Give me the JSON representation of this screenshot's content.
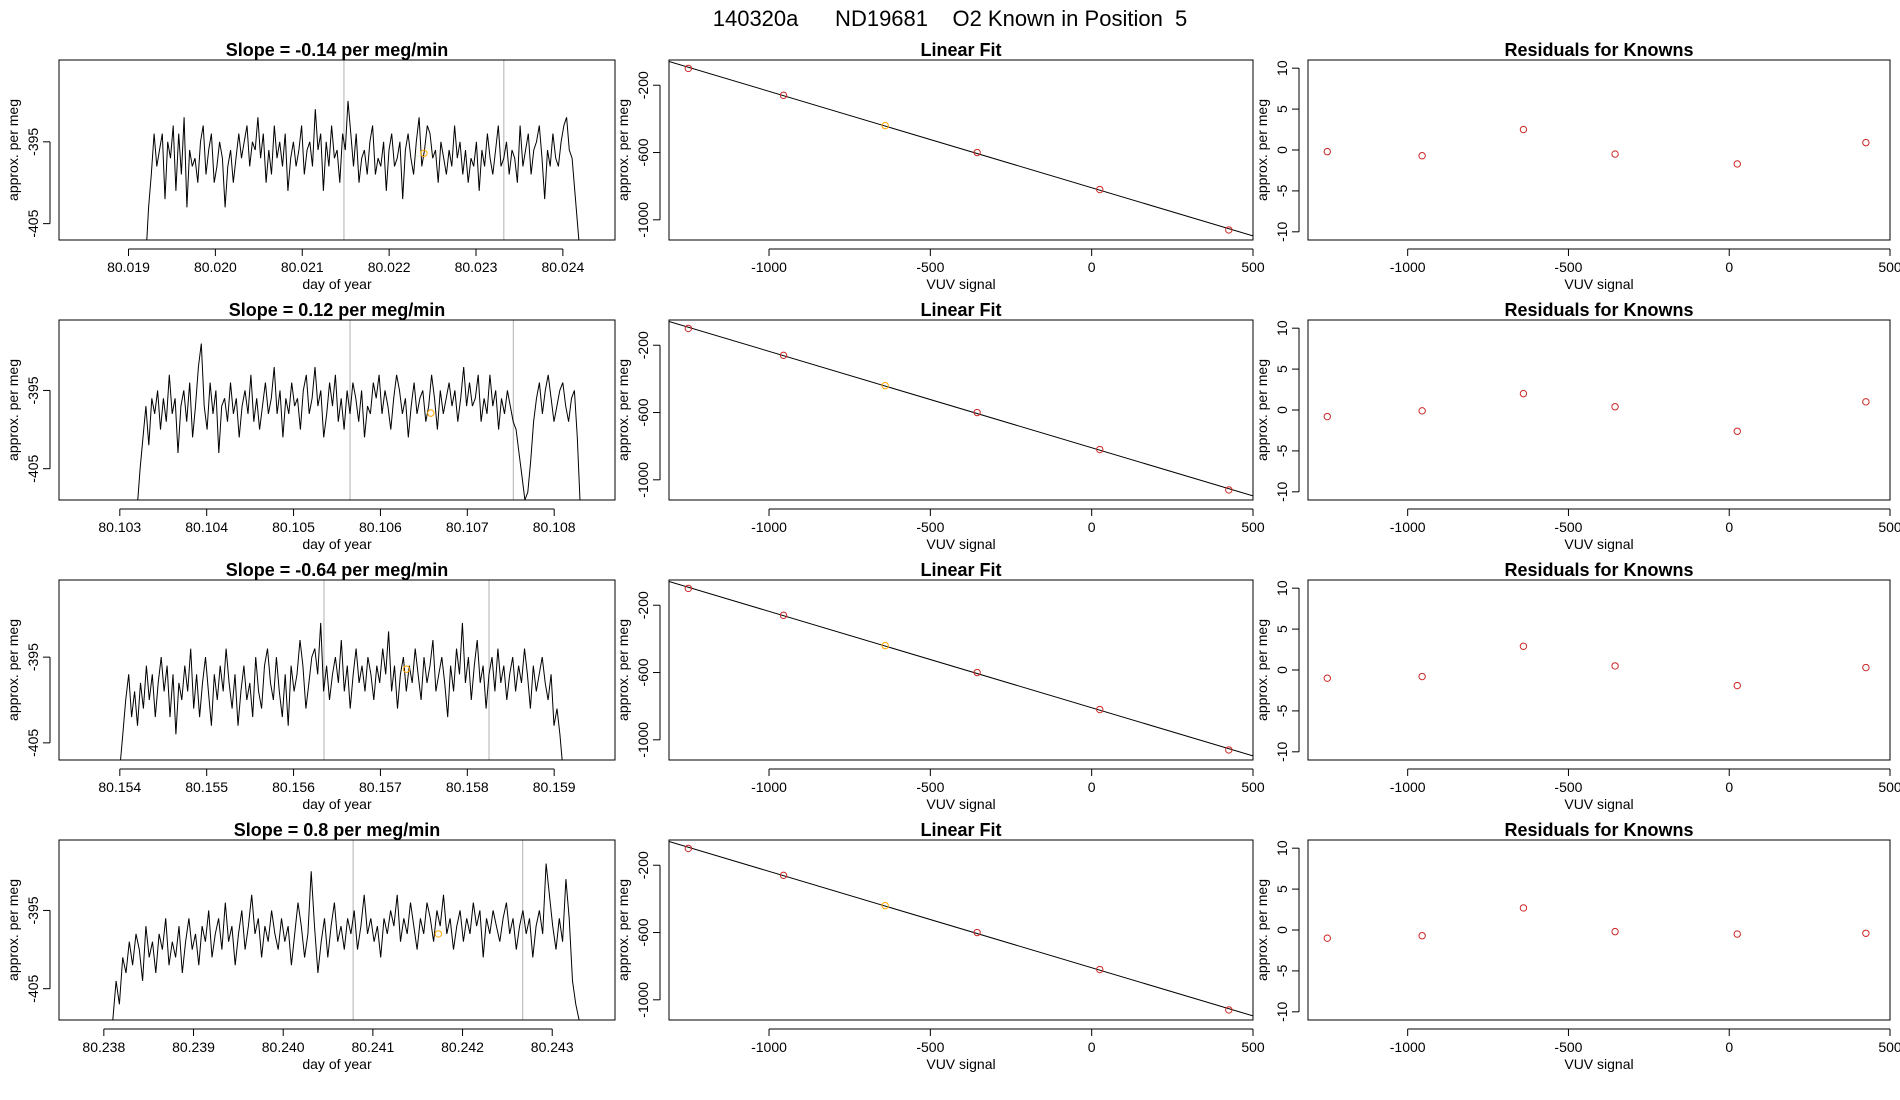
{
  "title": "140320a      ND19681    O2 Known in Position  5",
  "colors": {
    "trace": "#000000",
    "highlight": "#ffa500",
    "vline": "#bebebe",
    "residual": "#cd2626",
    "fitline": "#000000"
  },
  "chart_data": [
    {
      "type": "line",
      "title": "Slope =  -0.14  per meg/min",
      "xlabel": "day of year",
      "ylabel": "approx. per meg",
      "xlim": [
        80.0182,
        80.0246
      ],
      "ylim": [
        -407,
        -385
      ],
      "xticks": [
        80.019,
        80.02,
        80.021,
        80.022,
        80.023,
        80.024
      ],
      "xtick_labels": [
        "80.019",
        "80.020",
        "80.021",
        "80.022",
        "80.023",
        "80.024"
      ],
      "yticks": [
        -395,
        -405
      ],
      "ytick_labels": [
        "-395",
        "-405"
      ],
      "x_start": 80.0192,
      "x_end": 80.0242,
      "values": [
        -409,
        -403,
        -399,
        -394,
        -398,
        -396,
        -394,
        -402,
        -395,
        -397,
        -393,
        -401,
        -394,
        -399,
        -392,
        -403,
        -396,
        -398,
        -397,
        -400,
        -395,
        -393,
        -399,
        -396,
        -394,
        -400,
        -398,
        -395,
        -397,
        -403,
        -398,
        -396,
        -400,
        -397,
        -394,
        -397,
        -395,
        -393,
        -398,
        -395,
        -396,
        -392,
        -397,
        -394,
        -400,
        -396,
        -399,
        -393,
        -397,
        -395,
        -398,
        -394,
        -401,
        -397,
        -395,
        -398,
        -396,
        -393,
        -399,
        -396,
        -395,
        -398,
        -391,
        -396,
        -394,
        -401,
        -395,
        -398,
        -393,
        -397,
        -396,
        -400,
        -394,
        -396,
        -390,
        -394,
        -398,
        -394,
        -400,
        -397,
        -396,
        -399,
        -395,
        -393,
        -399,
        -397,
        -398,
        -395,
        -401,
        -396,
        -394,
        -398,
        -397,
        -395,
        -402,
        -396,
        -394,
        -397,
        -399,
        -395,
        -392,
        -398,
        -396,
        -393,
        -394,
        -397,
        -396,
        -400,
        -395,
        -397,
        -399,
        -396,
        -398,
        -393,
        -397,
        -395,
        -399,
        -396,
        -400,
        -397,
        -398,
        -395,
        -401,
        -396,
        -398,
        -394,
        -397,
        -399,
        -396,
        -393,
        -398,
        -397,
        -395,
        -399,
        -396,
        -397,
        -400,
        -393,
        -398,
        -396,
        -394,
        -399,
        -396,
        -395,
        -393,
        -397,
        -402,
        -396,
        -398,
        -394,
        -397,
        -398,
        -395,
        -393,
        -392,
        -396,
        -397,
        -401,
        -405,
        -409
      ],
      "vlines": [
        80.02148,
        80.02332
      ],
      "highlight_point": {
        "x": 80.0224,
        "y": -396.4
      }
    },
    {
      "type": "scatter",
      "title": "Linear Fit",
      "xlabel": "VUV signal",
      "ylabel": "approx. per meg",
      "xlim": [
        -1310,
        500
      ],
      "ylim": [
        -1120,
        -50
      ],
      "xticks": [
        -1000,
        -500,
        0,
        500
      ],
      "xtick_labels": [
        "-1000",
        "-500",
        "0",
        "500"
      ],
      "yticks": [
        -200,
        -600,
        -1000
      ],
      "ytick_labels": [
        "-200",
        "-600",
        "-1000"
      ],
      "x": [
        -1250,
        -955,
        -640,
        -355,
        25,
        425
      ],
      "y": [
        -100,
        -260,
        -440,
        -600,
        -820,
        -1060
      ],
      "highlight_index": 2,
      "fit_line": true
    },
    {
      "type": "scatter",
      "title": "Residuals for Knowns",
      "xlabel": "VUV signal",
      "ylabel": "approx. per meg",
      "xlim": [
        -1310,
        500
      ],
      "ylim": [
        -11,
        11
      ],
      "xticks": [
        -1000,
        -500,
        0,
        500
      ],
      "xtick_labels": [
        "-1000",
        "-500",
        "0",
        "500"
      ],
      "yticks": [
        10,
        5,
        0,
        -5,
        -10
      ],
      "ytick_labels": [
        "10",
        "5",
        "0",
        "-5",
        "-10"
      ],
      "x": [
        -1250,
        -955,
        -640,
        -355,
        25,
        425
      ],
      "y": [
        -0.2,
        -0.7,
        2.5,
        -0.5,
        -1.7,
        0.9
      ]
    },
    {
      "type": "line",
      "title": "Slope =  0.12  per meg/min",
      "xlabel": "day of year",
      "ylabel": "approx. per meg",
      "xlim": [
        80.1023,
        80.1087
      ],
      "ylim": [
        -409,
        -386
      ],
      "xticks": [
        80.103,
        80.104,
        80.105,
        80.106,
        80.107,
        80.108
      ],
      "xtick_labels": [
        "80.103",
        "80.104",
        "80.105",
        "80.106",
        "80.107",
        "80.108"
      ],
      "yticks": [
        -395,
        -405
      ],
      "ytick_labels": [
        "-395",
        "-405"
      ],
      "x_start": 80.1032,
      "x_end": 80.1083,
      "values": [
        -410,
        -405,
        -401,
        -397,
        -402,
        -396,
        -398,
        -395,
        -400,
        -396,
        -399,
        -393,
        -398,
        -396,
        -403,
        -397,
        -395,
        -399,
        -394,
        -401,
        -397,
        -392,
        -389,
        -397,
        -400,
        -394,
        -398,
        -395,
        -403,
        -397,
        -396,
        -399,
        -394,
        -398,
        -396,
        -401,
        -397,
        -395,
        -398,
        -393,
        -399,
        -396,
        -400,
        -397,
        -394,
        -398,
        -396,
        -392,
        -398,
        -395,
        -401,
        -396,
        -398,
        -394,
        -397,
        -396,
        -400,
        -395,
        -393,
        -398,
        -396,
        -392,
        -397,
        -395,
        -401,
        -398,
        -394,
        -397,
        -393,
        -399,
        -396,
        -400,
        -395,
        -398,
        -394,
        -396,
        -399,
        -395,
        -401,
        -397,
        -398,
        -394,
        -396,
        -393,
        -398,
        -395,
        -397,
        -400,
        -396,
        -393,
        -395,
        -398,
        -396,
        -401,
        -397,
        -394,
        -398,
        -396,
        -395,
        -399,
        -397,
        -393,
        -396,
        -400,
        -395,
        -398,
        -396,
        -394,
        -397,
        -395,
        -399,
        -396,
        -392,
        -397,
        -394,
        -397,
        -396,
        -393,
        -399,
        -396,
        -398,
        -393,
        -397,
        -395,
        -400,
        -396,
        -398,
        -395,
        -397,
        -399,
        -400,
        -403,
        -406,
        -409,
        -408,
        -404,
        -399,
        -396,
        -394,
        -398,
        -395,
        -393,
        -396,
        -399,
        -397,
        -395,
        -394,
        -397,
        -399,
        -396,
        -395,
        -401,
        -410
      ],
      "vlines": [
        80.10565,
        80.10753
      ],
      "highlight_point": {
        "x": 80.10658,
        "y": -397.9
      }
    },
    {
      "type": "scatter",
      "title": "Linear Fit",
      "xlabel": "VUV signal",
      "ylabel": "approx. per meg",
      "xlim": [
        -1310,
        500
      ],
      "ylim": [
        -1120,
        -50
      ],
      "xticks": [
        -1000,
        -500,
        0,
        500
      ],
      "xtick_labels": [
        "-1000",
        "-500",
        "0",
        "500"
      ],
      "yticks": [
        -200,
        -600,
        -1000
      ],
      "ytick_labels": [
        "-200",
        "-600",
        "-1000"
      ],
      "x": [
        -1250,
        -955,
        -640,
        -355,
        25,
        425
      ],
      "y": [
        -100,
        -260,
        -440,
        -600,
        -820,
        -1060
      ],
      "highlight_index": 2,
      "fit_line": true
    },
    {
      "type": "scatter",
      "title": "Residuals for Knowns",
      "xlabel": "VUV signal",
      "ylabel": "approx. per meg",
      "xlim": [
        -1310,
        500
      ],
      "ylim": [
        -11,
        11
      ],
      "xticks": [
        -1000,
        -500,
        0,
        500
      ],
      "xtick_labels": [
        "-1000",
        "-500",
        "0",
        "500"
      ],
      "yticks": [
        10,
        5,
        0,
        -5,
        -10
      ],
      "ytick_labels": [
        "10",
        "5",
        "0",
        "-5",
        "-10"
      ],
      "x": [
        -1250,
        -955,
        -640,
        -355,
        25,
        425
      ],
      "y": [
        -0.8,
        -0.1,
        2.0,
        0.4,
        -2.6,
        1.0
      ]
    },
    {
      "type": "line",
      "title": "Slope =  -0.64  per meg/min",
      "xlabel": "day of year",
      "ylabel": "approx. per meg",
      "xlim": [
        80.1533,
        80.1597
      ],
      "ylim": [
        -407,
        -386
      ],
      "xticks": [
        80.154,
        80.155,
        80.156,
        80.157,
        80.158,
        80.159
      ],
      "xtick_labels": [
        "80.154",
        "80.155",
        "80.156",
        "80.157",
        "80.158",
        "80.159"
      ],
      "yticks": [
        -395,
        -405
      ],
      "ytick_labels": [
        "-395",
        "-405"
      ],
      "x_start": 80.154,
      "x_end": 80.1591,
      "values": [
        -408,
        -404,
        -400,
        -397,
        -402,
        -399,
        -403,
        -398,
        -401,
        -396,
        -400,
        -397,
        -402,
        -398,
        -395,
        -399,
        -396,
        -402,
        -397,
        -404,
        -398,
        -400,
        -396,
        -399,
        -394,
        -401,
        -397,
        -402,
        -398,
        -395,
        -399,
        -403,
        -397,
        -400,
        -396,
        -399,
        -394,
        -398,
        -401,
        -397,
        -403,
        -399,
        -396,
        -400,
        -398,
        -402,
        -395,
        -399,
        -401,
        -396,
        -394,
        -398,
        -400,
        -395,
        -399,
        -402,
        -397,
        -403,
        -396,
        -399,
        -397,
        -393,
        -396,
        -401,
        -398,
        -395,
        -394,
        -397,
        -391,
        -399,
        -396,
        -400,
        -397,
        -395,
        -398,
        -393,
        -399,
        -396,
        -401,
        -397,
        -394,
        -398,
        -396,
        -399,
        -395,
        -397,
        -400,
        -396,
        -398,
        -394,
        -397,
        -392,
        -399,
        -396,
        -401,
        -397,
        -395,
        -399,
        -396,
        -398,
        -394,
        -397,
        -400,
        -395,
        -398,
        -396,
        -393,
        -399,
        -397,
        -395,
        -398,
        -402,
        -396,
        -399,
        -394,
        -397,
        -391,
        -398,
        -395,
        -400,
        -396,
        -393,
        -398,
        -396,
        -401,
        -397,
        -395,
        -399,
        -394,
        -398,
        -396,
        -400,
        -397,
        -395,
        -399,
        -396,
        -398,
        -394,
        -397,
        -401,
        -396,
        -399,
        -397,
        -395,
        -398,
        -400,
        -397,
        -403,
        -401,
        -404,
        -408
      ],
      "vlines": [
        80.15635,
        80.15825
      ],
      "highlight_point": {
        "x": 80.1573,
        "y": -396.4
      }
    },
    {
      "type": "scatter",
      "title": "Linear Fit",
      "xlabel": "VUV signal",
      "ylabel": "approx. per meg",
      "xlim": [
        -1310,
        500
      ],
      "ylim": [
        -1120,
        -50
      ],
      "xticks": [
        -1000,
        -500,
        0,
        500
      ],
      "xtick_labels": [
        "-1000",
        "-500",
        "0",
        "500"
      ],
      "yticks": [
        -200,
        -600,
        -1000
      ],
      "ytick_labels": [
        "-200",
        "-600",
        "-1000"
      ],
      "x": [
        -1250,
        -955,
        -640,
        -355,
        25,
        425
      ],
      "y": [
        -100,
        -260,
        -440,
        -600,
        -820,
        -1060
      ],
      "highlight_index": 2,
      "fit_line": true
    },
    {
      "type": "scatter",
      "title": "Residuals for Knowns",
      "xlabel": "VUV signal",
      "ylabel": "approx. per meg",
      "xlim": [
        -1310,
        500
      ],
      "ylim": [
        -11,
        11
      ],
      "xticks": [
        -1000,
        -500,
        0,
        500
      ],
      "xtick_labels": [
        "-1000",
        "-500",
        "0",
        "500"
      ],
      "yticks": [
        10,
        5,
        0,
        -5,
        -10
      ],
      "ytick_labels": [
        "10",
        "5",
        "0",
        "-5",
        "-10"
      ],
      "x": [
        -1250,
        -955,
        -640,
        -355,
        25,
        425
      ],
      "y": [
        -1.0,
        -0.8,
        2.9,
        0.5,
        -1.9,
        0.3
      ]
    },
    {
      "type": "line",
      "title": "Slope =  0.8  per meg/min",
      "xlabel": "day of year",
      "ylabel": "approx. per meg",
      "xlim": [
        80.2375,
        80.2437
      ],
      "ylim": [
        -409,
        -386
      ],
      "xticks": [
        80.238,
        80.239,
        80.24,
        80.241,
        80.242,
        80.243
      ],
      "xtick_labels": [
        "80.238",
        "80.239",
        "80.240",
        "80.241",
        "80.242",
        "80.243"
      ],
      "yticks": [
        -395,
        -405
      ],
      "ytick_labels": [
        "-395",
        "-405"
      ],
      "x_start": 80.2381,
      "x_end": 80.2433,
      "values": [
        -409,
        -404,
        -407,
        -401,
        -403,
        -399,
        -402,
        -398,
        -400,
        -404,
        -397,
        -401,
        -399,
        -403,
        -398,
        -400,
        -396,
        -402,
        -399,
        -401,
        -397,
        -403,
        -399,
        -396,
        -400,
        -398,
        -402,
        -397,
        -399,
        -395,
        -401,
        -398,
        -396,
        -400,
        -394,
        -399,
        -397,
        -402,
        -398,
        -395,
        -400,
        -397,
        -393,
        -398,
        -396,
        -401,
        -397,
        -399,
        -395,
        -398,
        -400,
        -396,
        -399,
        -397,
        -402,
        -398,
        -394,
        -397,
        -401,
        -398,
        -390,
        -397,
        -403,
        -399,
        -396,
        -401,
        -397,
        -394,
        -399,
        -397,
        -400,
        -396,
        -398,
        -395,
        -400,
        -397,
        -393,
        -398,
        -396,
        -399,
        -397,
        -401,
        -396,
        -398,
        -395,
        -397,
        -393,
        -399,
        -396,
        -398,
        -394,
        -397,
        -400,
        -396,
        -398,
        -394,
        -396,
        -399,
        -395,
        -397,
        -393,
        -398,
        -396,
        -400,
        -397,
        -395,
        -399,
        -396,
        -398,
        -394,
        -397,
        -395,
        -401,
        -396,
        -398,
        -395,
        -397,
        -399,
        -396,
        -394,
        -398,
        -396,
        -400,
        -397,
        -395,
        -398,
        -396,
        -401,
        -397,
        -395,
        -398,
        -389,
        -393,
        -397,
        -400,
        -396,
        -399,
        -391,
        -396,
        -404,
        -407,
        -409
      ],
      "vlines": [
        80.24078,
        80.24267
      ],
      "highlight_point": {
        "x": 80.24173,
        "y": -398.0
      }
    },
    {
      "type": "scatter",
      "title": "Linear Fit",
      "xlabel": "VUV signal",
      "ylabel": "approx. per meg",
      "xlim": [
        -1310,
        500
      ],
      "ylim": [
        -1120,
        -50
      ],
      "xticks": [
        -1000,
        -500,
        0,
        500
      ],
      "xtick_labels": [
        "-1000",
        "-500",
        "0",
        "500"
      ],
      "yticks": [
        -200,
        -600,
        -1000
      ],
      "ytick_labels": [
        "-200",
        "-600",
        "-1000"
      ],
      "x": [
        -1250,
        -955,
        -640,
        -355,
        25,
        425
      ],
      "y": [
        -100,
        -260,
        -440,
        -600,
        -820,
        -1060
      ],
      "highlight_index": 2,
      "fit_line": true
    },
    {
      "type": "scatter",
      "title": "Residuals for Knowns",
      "xlabel": "VUV signal",
      "ylabel": "approx. per meg",
      "xlim": [
        -1310,
        500
      ],
      "ylim": [
        -11,
        11
      ],
      "xticks": [
        -1000,
        -500,
        0,
        500
      ],
      "xtick_labels": [
        "-1000",
        "-500",
        "0",
        "500"
      ],
      "yticks": [
        10,
        5,
        0,
        -5,
        -10
      ],
      "ytick_labels": [
        "10",
        "5",
        "0",
        "-5",
        "-10"
      ],
      "x": [
        -1250,
        -955,
        -640,
        -355,
        25,
        425
      ],
      "y": [
        -1.0,
        -0.7,
        2.7,
        -0.2,
        -0.5,
        -0.4
      ]
    }
  ]
}
